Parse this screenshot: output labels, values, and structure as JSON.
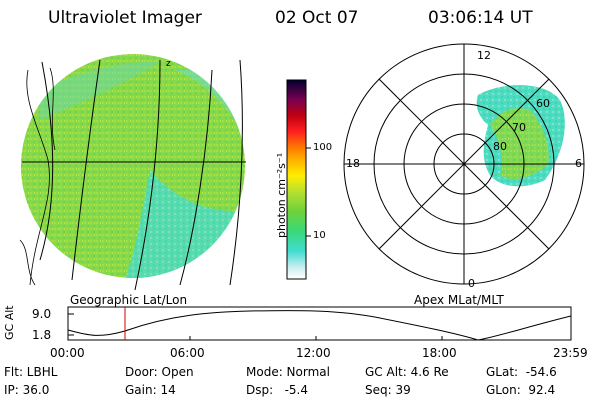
{
  "header": {
    "title": "Ultraviolet Imager",
    "date": "02 Oct 07",
    "time": "03:06:14 UT"
  },
  "left_panel": {
    "caption": "Geographic Lat/Lon",
    "north_marker": "z"
  },
  "right_panel": {
    "caption": "Apex MLat/MLT",
    "mlt_labels": [
      "12",
      "18",
      "6",
      "0"
    ],
    "mlat_labels": [
      "60",
      "70",
      "80"
    ]
  },
  "colorbar": {
    "label": "photon cm⁻²s⁻¹",
    "ticks": [
      "100",
      "10"
    ]
  },
  "altitude_plot": {
    "ylabel": "GC Alt",
    "yticks": [
      "9.0",
      "1.8"
    ],
    "xticks": [
      "00:00",
      "06:00",
      "12:00",
      "18:00",
      "23:59"
    ]
  },
  "info": {
    "flt": "Flt: LBHL",
    "ip": "IP: 36.0",
    "door": "Door: Open",
    "gain": "Gain: 14",
    "mode": "Mode: Normal",
    "dsp": "Dsp:   -5.4",
    "gcalt": "GC Alt: 4.6 Re",
    "seq": "Seq: 39",
    "glat": "GLat:  -54.6",
    "glon": "GLon:  92.4"
  },
  "colors": {
    "emission_green": "#7fd640",
    "emission_cyan": "#3fdcc8",
    "emission_yellow": "#c6e83a",
    "current_time_marker": "#d00000"
  }
}
